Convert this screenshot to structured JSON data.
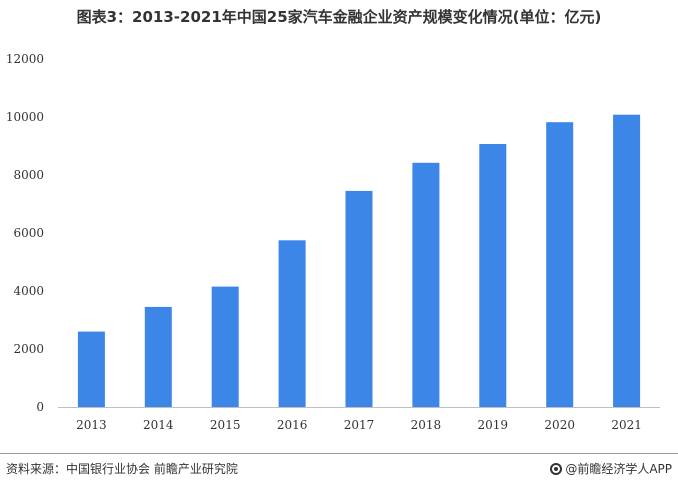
{
  "title": "图表3：2013-2021年中国25家汽车金融企业资产规模变化情况(单位：亿元)",
  "source": "资料来源：中国银行业协会 前瞻产业研究院",
  "brand": "@前瞻经济学人APP",
  "colors": {
    "bar": "#3b86e6",
    "axis": "#bfbfbf",
    "text": "#333333"
  },
  "chart_data": {
    "type": "bar",
    "title": "图表3：2013-2021年中国25家汽车金融企业资产规模变化情况(单位：亿元)",
    "categories": [
      "2013",
      "2014",
      "2015",
      "2016",
      "2017",
      "2018",
      "2019",
      "2020",
      "2021"
    ],
    "values": [
      2600,
      3450,
      4150,
      5750,
      7450,
      8420,
      9070,
      9820,
      10080
    ],
    "ylim": [
      0,
      12000
    ],
    "yticks": [
      "0",
      "2000",
      "4000",
      "6000",
      "8000",
      "10000",
      "12000"
    ],
    "xlabel": "",
    "ylabel": "",
    "grid": false,
    "legend": "none"
  }
}
